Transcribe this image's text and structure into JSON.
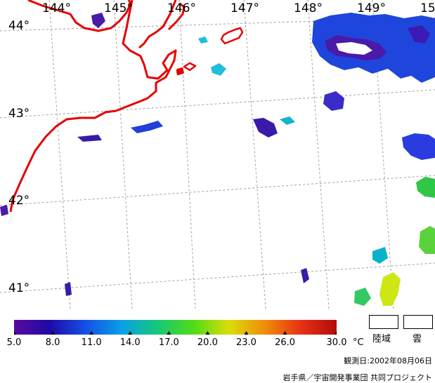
{
  "map": {
    "longitude_labels": [
      "144°",
      "145°",
      "146°",
      "147°",
      "148°",
      "149°",
      "15"
    ],
    "latitude_labels": [
      "44°",
      "43°",
      "42°",
      "41°"
    ]
  },
  "colorbar": {
    "tick_labels": [
      "5.0",
      "8.0",
      "11.0",
      "14.0",
      "17.0",
      "20.0",
      "23.0",
      "26.0",
      "30.0"
    ],
    "unit": "°C",
    "colors": [
      "#5a0a9c",
      "#1e0aa8",
      "#1450e6",
      "#0aa0e6",
      "#14c878",
      "#50dc14",
      "#dcdc0a",
      "#f08c0a",
      "#e63214",
      "#b40a0a"
    ]
  },
  "legend": {
    "land_label": "陸域",
    "cloud_label": "雲"
  },
  "footer": {
    "observation_date": "観測日:2002年08月06日",
    "credit": "岩手県／宇宙開発事業団 共同プロジェクト"
  },
  "style": {
    "coastline_color": "#e60000",
    "grid_color": "#999999"
  }
}
